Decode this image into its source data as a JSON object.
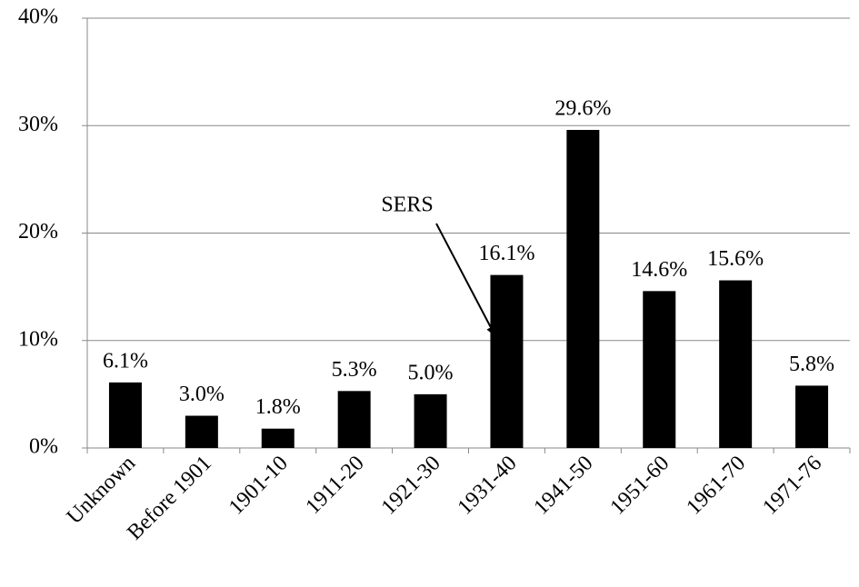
{
  "chart_data": {
    "type": "bar",
    "categories": [
      "Unknown",
      "Before 1901",
      "1901-10",
      "1911-20",
      "1921-30",
      "1931-40",
      "1941-50",
      "1951-60",
      "1961-70",
      "1971-76"
    ],
    "values": [
      6.1,
      3.0,
      1.8,
      5.3,
      5.0,
      16.1,
      29.6,
      14.6,
      15.6,
      5.8
    ],
    "value_labels": [
      "6.1%",
      "3.0%",
      "1.8%",
      "5.3%",
      "5.0%",
      "16.1%",
      "29.6%",
      "14.6%",
      "15.6%",
      "5.8%"
    ],
    "color": "#000000",
    "ylim": [
      0,
      40
    ],
    "yticks": [
      {
        "value": 0,
        "label": "0%"
      },
      {
        "value": 10,
        "label": "10%"
      },
      {
        "value": 20,
        "label": "20%"
      },
      {
        "value": 30,
        "label": "30%"
      },
      {
        "value": 40,
        "label": "40%"
      }
    ],
    "grid": true,
    "annotation": "SERS"
  }
}
